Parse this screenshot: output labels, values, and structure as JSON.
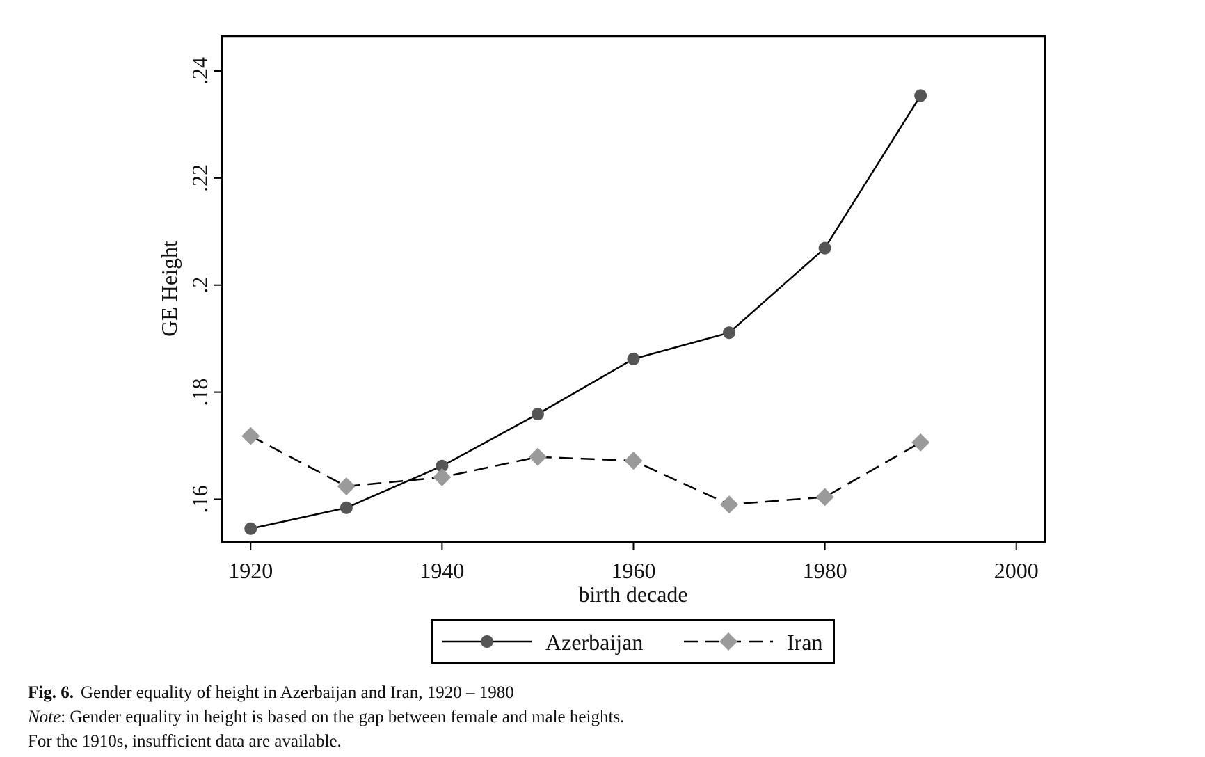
{
  "chart_data": {
    "type": "line",
    "xlabel": "birth decade",
    "ylabel": "GE Height",
    "xlim": [
      1917,
      2003
    ],
    "ylim": [
      0.152,
      0.2465
    ],
    "x_ticks": [
      1920,
      1940,
      1960,
      1980,
      2000
    ],
    "x_tick_labels": [
      "1920",
      "1940",
      "1960",
      "1980",
      "2000"
    ],
    "y_ticks": [
      0.16,
      0.18,
      0.2,
      0.22,
      0.24
    ],
    "y_tick_labels": [
      ".16",
      ".18",
      ".2",
      ".22",
      ".24"
    ],
    "x": [
      1920,
      1930,
      1940,
      1950,
      1960,
      1970,
      1980,
      1990
    ],
    "series": [
      {
        "name": "Azerbaijan",
        "values": [
          0.1545,
          0.1584,
          0.1662,
          0.1759,
          0.1862,
          0.1911,
          0.2069,
          0.2354
        ],
        "line_style": "solid",
        "marker": "circle",
        "color": "#000000",
        "marker_color": "#555555"
      },
      {
        "name": "Iran",
        "values": [
          0.1718,
          0.1624,
          0.1641,
          0.1679,
          0.1672,
          0.159,
          0.1604,
          0.1706
        ],
        "line_style": "dashed",
        "marker": "diamond",
        "color": "#000000",
        "marker_color": "#9a9a9a"
      }
    ],
    "grid": false,
    "legend_position": "bottom"
  },
  "caption": {
    "fig_label": "Fig. 6.",
    "title": "Gender equality of height in Azerbaijan and Iran, 1920 – 1980",
    "note_label": "Note",
    "note_text": ": Gender equality in height is based on the gap between female and male heights.",
    "note_line2": "For the 1910s, insufficient data are available."
  }
}
